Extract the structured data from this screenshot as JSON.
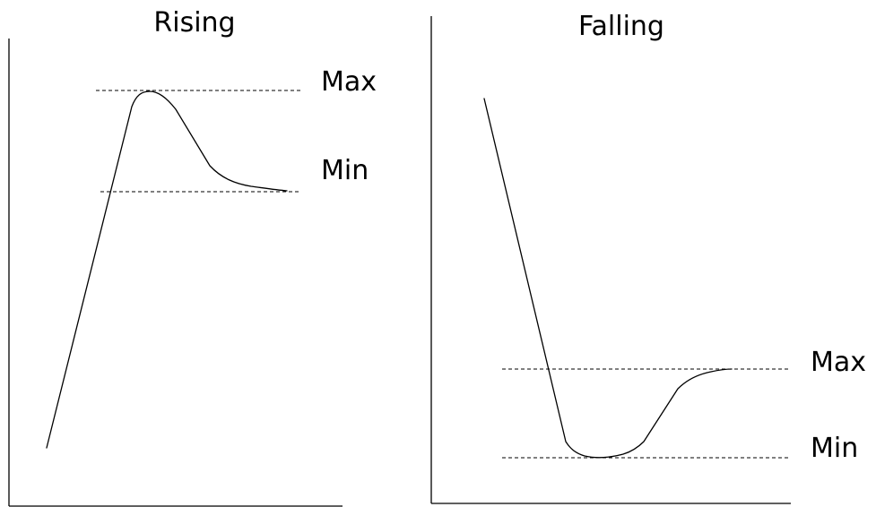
{
  "panels": {
    "rising": {
      "title": "Rising",
      "max_label": "Max",
      "min_label": "Min"
    },
    "falling": {
      "title": "Falling",
      "max_label": "Max",
      "min_label": "Min"
    }
  }
}
